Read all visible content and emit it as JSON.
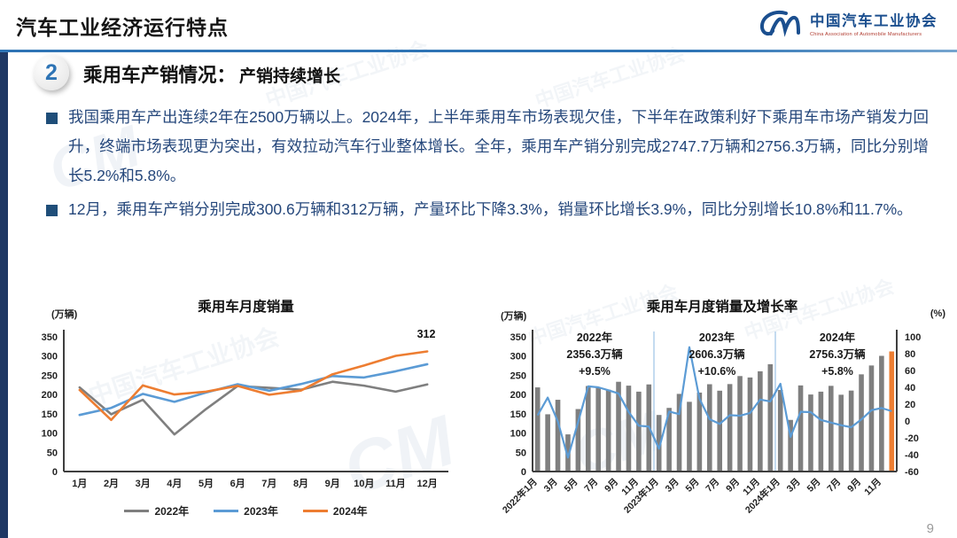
{
  "page": {
    "number": "9"
  },
  "watermark": {
    "text": "中国汽车工业协会",
    "mark": "CM"
  },
  "header": {
    "title": "汽车工业经济运行特点",
    "logo": {
      "org_cn": "中国汽车工业协会",
      "org_en": "China Association of Automobile Manufacturers"
    }
  },
  "section": {
    "badge": "2",
    "heading": "乘用车产销情况：",
    "subheading": "产销持续增长"
  },
  "bullets": [
    "我国乘用车产出连续2年在2500万辆以上。2024年，上半年乘用车市场表现欠佳，下半年在政策利好下乘用车市场产销发力回升，终端市场表现更为突出，有效拉动汽车行业整体增长。全年，乘用车产销分别完成2747.7万辆和2756.3万辆，同比分别增长5.2%和5.8%。",
    "12月，乘用车产销分别完成300.6万辆和312万辆，产量环比下降3.3%，销量环比增长3.9%，同比分别增长10.8%和11.7%。"
  ],
  "chart_data": [
    {
      "type": "line",
      "title": "乘用车月度销量",
      "unit_label": "(万辆)",
      "categories": [
        "1月",
        "2月",
        "3月",
        "4月",
        "5月",
        "6月",
        "7月",
        "8月",
        "9月",
        "10月",
        "11月",
        "12月"
      ],
      "ylim": [
        0,
        350
      ],
      "ytick_step": 50,
      "grid": false,
      "legend_position": "bottom",
      "series": [
        {
          "name": "2022年",
          "color": "#7f7f7f",
          "values": [
            218.6,
            148.7,
            186.4,
            96.5,
            162.3,
            222.2,
            217.4,
            212.5,
            233.2,
            223.1,
            207.5,
            226.3
          ]
        },
        {
          "name": "2023年",
          "color": "#5b9bd5",
          "values": [
            146.9,
            165.3,
            201.7,
            181.1,
            205.1,
            226.8,
            210.0,
            227.2,
            248.0,
            244.3,
            260.4,
            278.8
          ]
        },
        {
          "name": "2024年",
          "color": "#ed7d31",
          "values": [
            211.9,
            134.1,
            223.7,
            200.1,
            207.5,
            222.6,
            199.5,
            210.3,
            252.5,
            275.5,
            300.5,
            312
          ]
        }
      ],
      "annotation": {
        "text": "312"
      }
    },
    {
      "type": "bar+line",
      "title": "乘用车月度销量及增长率",
      "unit_label_left": "(万辆)",
      "unit_label_right": "(%)",
      "ylim_left": [
        0,
        350
      ],
      "ytick_step_left": 50,
      "ylim_right": [
        -60,
        100
      ],
      "ytick_step_right": 20,
      "grid": false,
      "bar_color": "#7f7f7f",
      "last_bar_color": "#ed7d31",
      "line_color": "#5b9bd5",
      "separator_color": "#9dc3e6",
      "tick_labels": [
        "2022年1月",
        "3月",
        "5月",
        "7月",
        "9月",
        "11月",
        "2023年1月",
        "3月",
        "5月",
        "7月",
        "9月",
        "11月",
        "2024年1月",
        "3月",
        "5月",
        "7月",
        "9月",
        "11月"
      ],
      "bars": [
        218.6,
        148.7,
        186.4,
        96.5,
        162.3,
        222.2,
        217.4,
        212.5,
        233.2,
        223.1,
        207.5,
        226.3,
        146.9,
        165.3,
        201.7,
        181.1,
        205.1,
        226.8,
        210.0,
        227.2,
        248.0,
        244.3,
        260.4,
        278.8,
        211.9,
        134.1,
        223.7,
        200.1,
        207.5,
        222.6,
        199.5,
        210.3,
        252.5,
        275.5,
        300.5,
        312
      ],
      "line": [
        6.7,
        27.8,
        -0.6,
        -43.4,
        -1.4,
        41.2,
        40.0,
        36.5,
        32.7,
        10.7,
        -5.6,
        -6.6,
        -32.9,
        11.2,
        8.2,
        87.7,
        26.4,
        2.1,
        -3.4,
        6.9,
        6.3,
        9.5,
        25.5,
        23.2,
        44.2,
        -18.9,
        10.9,
        10.5,
        1.2,
        -1.9,
        -5.0,
        -7.4,
        1.8,
        12.8,
        15.4,
        11.7
      ],
      "year_separators_after_bar": [
        12,
        24
      ],
      "annotations": [
        {
          "lines": [
            "2022年",
            "2356.3万辆",
            "+9.5%"
          ]
        },
        {
          "lines": [
            "2023年",
            "2606.3万辆",
            "+10.6%"
          ]
        },
        {
          "lines": [
            "2024年",
            "2756.3万辆",
            "+5.8%"
          ]
        }
      ]
    }
  ],
  "colors": {
    "accent_blue": "#2e74b5",
    "navy_bar": "#1f3864",
    "body_text": "#25477b",
    "gray_series": "#7f7f7f",
    "blue_series": "#5b9bd5",
    "orange_series": "#ed7d31"
  }
}
